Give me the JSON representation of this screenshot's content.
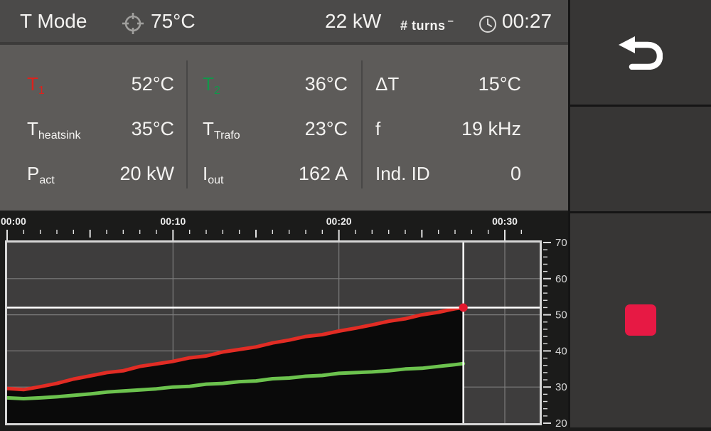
{
  "topbar": {
    "mode_label": "T Mode",
    "target_temp": "75°C",
    "power": "22 kW",
    "turns_label": "# turns",
    "turns_superscript": "–",
    "time": "00:27"
  },
  "measurements": {
    "columns": [
      {
        "rows": [
          {
            "label": "T",
            "sub": "1",
            "value": "52°C"
          },
          {
            "label": "T",
            "sub": "heatsink",
            "value": "35°C"
          },
          {
            "label": "P",
            "sub": "act",
            "value": "20 kW"
          }
        ]
      },
      {
        "rows": [
          {
            "label": "T",
            "sub": "2",
            "value": "36°C"
          },
          {
            "label": "T",
            "sub": "Trafo",
            "value": "23°C"
          },
          {
            "label": "I",
            "sub": "out",
            "value": "162 A"
          }
        ]
      },
      {
        "rows": [
          {
            "label": "ΔT",
            "sub": "",
            "value": "15°C"
          },
          {
            "label": "f",
            "sub": "",
            "value": "19 kHz"
          },
          {
            "label": "Ind. ID",
            "sub": "",
            "value": "0"
          }
        ]
      }
    ]
  },
  "colors": {
    "t1_label": "#dc221c",
    "t2_label": "#13964b",
    "t1_curve": "#e22c24",
    "t2_curve": "#6cc24e",
    "stop_button": "#e71944",
    "cursor": "#ffffff",
    "marker": "#e5182d"
  },
  "sidebar": {
    "back_icon": "back-arrow-icon",
    "stop_icon": "stop-square-icon"
  },
  "chart_data": {
    "type": "line",
    "title": "",
    "xlabel": "",
    "ylabel": "",
    "x_axis": {
      "unit": "mm:ss",
      "tick_labels": [
        "00:00",
        "00:10",
        "00:20",
        "00:30"
      ],
      "tick_minutes": [
        0,
        10,
        20,
        30
      ],
      "minor_every_min": 1,
      "medium_every_min": 5,
      "last_minor_min": 31,
      "range_min": [
        0,
        32.1
      ]
    },
    "y_axis": {
      "min": 20,
      "max": 70,
      "tick_labels": [
        "70",
        "60",
        "50",
        "40",
        "30",
        "20"
      ],
      "tick_values": [
        70,
        60,
        50,
        40,
        30,
        20
      ],
      "minor_step": 2,
      "position": "right"
    },
    "grid": {
      "h_values": [
        60,
        50,
        40,
        30
      ],
      "v_minutes": [
        10,
        20,
        30
      ]
    },
    "cursor": {
      "time_min": 27.5,
      "value": 52
    },
    "series": [
      {
        "name": "T1",
        "color": "#e22c24",
        "fill_below": "#0a0a0a",
        "points": [
          [
            0,
            29.6
          ],
          [
            1,
            29.3
          ],
          [
            2,
            30.1
          ],
          [
            3,
            31.0
          ],
          [
            4,
            32.2
          ],
          [
            5,
            33.1
          ],
          [
            6,
            34.0
          ],
          [
            7,
            34.5
          ],
          [
            8,
            35.7
          ],
          [
            9,
            36.4
          ],
          [
            10,
            37.1
          ],
          [
            11,
            38.1
          ],
          [
            12,
            38.6
          ],
          [
            13,
            39.7
          ],
          [
            14,
            40.4
          ],
          [
            15,
            41.1
          ],
          [
            16,
            42.2
          ],
          [
            17,
            43.0
          ],
          [
            18,
            44.0
          ],
          [
            19,
            44.5
          ],
          [
            20,
            45.5
          ],
          [
            21,
            46.3
          ],
          [
            22,
            47.2
          ],
          [
            23,
            48.2
          ],
          [
            24,
            48.9
          ],
          [
            25,
            50.0
          ],
          [
            26,
            50.7
          ],
          [
            27,
            51.7
          ],
          [
            27.5,
            52.0
          ]
        ]
      },
      {
        "name": "T2",
        "color": "#6cc24e",
        "points": [
          [
            0,
            27.0
          ],
          [
            1,
            26.8
          ],
          [
            2,
            27.0
          ],
          [
            3,
            27.3
          ],
          [
            4,
            27.7
          ],
          [
            5,
            28.1
          ],
          [
            6,
            28.6
          ],
          [
            7,
            28.9
          ],
          [
            8,
            29.2
          ],
          [
            9,
            29.5
          ],
          [
            10,
            30.0
          ],
          [
            11,
            30.2
          ],
          [
            12,
            30.8
          ],
          [
            13,
            31.0
          ],
          [
            14,
            31.5
          ],
          [
            15,
            31.7
          ],
          [
            16,
            32.3
          ],
          [
            17,
            32.5
          ],
          [
            18,
            33.0
          ],
          [
            19,
            33.2
          ],
          [
            20,
            33.8
          ],
          [
            21,
            34.0
          ],
          [
            22,
            34.2
          ],
          [
            23,
            34.5
          ],
          [
            24,
            35.0
          ],
          [
            25,
            35.2
          ],
          [
            26,
            35.7
          ],
          [
            27,
            36.2
          ],
          [
            27.5,
            36.5
          ]
        ]
      }
    ],
    "plot_bg": "#3e3d3d",
    "grid_color": "#7c7c7c",
    "border_color": "#d6d6d6",
    "cursor_color": "#ffffff",
    "marker_color": "#e5182d",
    "legend": "none"
  }
}
